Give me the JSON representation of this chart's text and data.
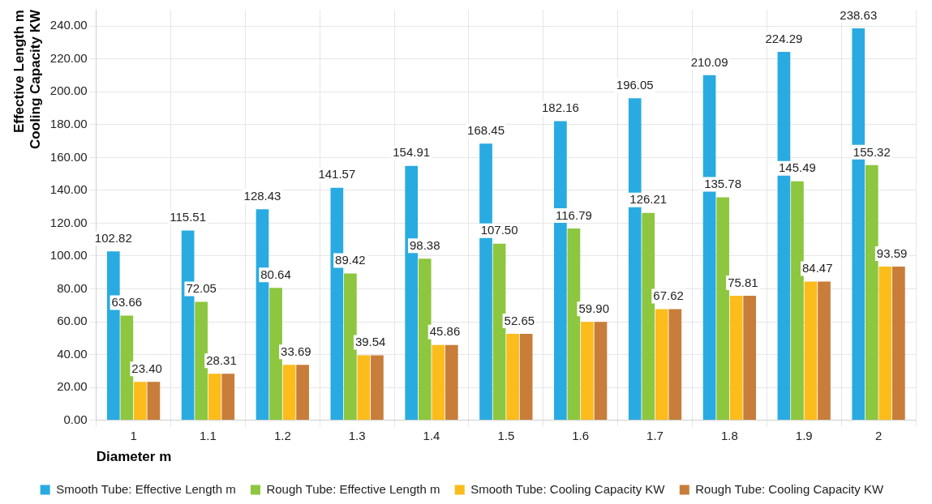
{
  "chart_data": {
    "type": "bar",
    "xlabel": "Diameter m",
    "ylabel": "Effective Length m\nCooling Capacity KW",
    "categories": [
      "1",
      "1.1",
      "1.2",
      "1.3",
      "1.4",
      "1.5",
      "1.6",
      "1.7",
      "1.8",
      "1.9",
      "2"
    ],
    "series": [
      {
        "name": "Smooth Tube: Effective Length m",
        "color": "#29abe2",
        "values": [
          102.82,
          115.51,
          128.43,
          141.57,
          154.91,
          168.45,
          182.16,
          196.05,
          210.09,
          224.29,
          238.63
        ],
        "value_labels": [
          "102.82",
          "115.51",
          "128.43",
          "141.57",
          "154.91",
          "168.45",
          "182.16",
          "196.05",
          "210.09",
          "224.29",
          "238.63"
        ]
      },
      {
        "name": "Rough Tube: Effective Length m",
        "color": "#8dc63f",
        "values": [
          63.66,
          72.05,
          80.64,
          89.42,
          98.38,
          107.5,
          116.79,
          126.21,
          135.78,
          145.49,
          155.32
        ],
        "value_labels": [
          "63.66",
          "72.05",
          "80.64",
          "89.42",
          "98.38",
          "107.50",
          "116.79",
          "126.21",
          "135.78",
          "145.49",
          "155.32"
        ]
      },
      {
        "name": "Smooth Tube: Cooling Capacity KW",
        "color": "#fbbc1c",
        "values": [
          23.4,
          28.31,
          33.69,
          39.54,
          45.86,
          52.65,
          59.9,
          67.62,
          75.81,
          84.47,
          93.59
        ],
        "value_labels": [
          "23.40",
          "28.31",
          "33.69",
          "39.54",
          "45.86",
          "52.65",
          "59.90",
          "67.62",
          "75.81",
          "84.47",
          "93.59"
        ]
      },
      {
        "name": "Rough Tube: Cooling Capacity KW",
        "color": "#c87d3a",
        "values": [
          23.4,
          28.31,
          33.69,
          39.54,
          45.86,
          52.65,
          59.9,
          67.62,
          75.81,
          84.47,
          93.59
        ],
        "value_labels": [
          null,
          null,
          null,
          null,
          null,
          null,
          null,
          null,
          null,
          null,
          null
        ]
      }
    ],
    "ylim": [
      0,
      250
    ],
    "yticks": [
      {
        "value": 0,
        "label": "0.00"
      },
      {
        "value": 20,
        "label": "20.00"
      },
      {
        "value": 40,
        "label": "40.00"
      },
      {
        "value": 60,
        "label": "60.00"
      },
      {
        "value": 80,
        "label": "80.00"
      },
      {
        "value": 100,
        "label": "100.00"
      },
      {
        "value": 120,
        "label": "120.00"
      },
      {
        "value": 140,
        "label": "140.00"
      },
      {
        "value": 160,
        "label": "160.00"
      },
      {
        "value": 180,
        "label": "180.00"
      },
      {
        "value": 200,
        "label": "200.00"
      },
      {
        "value": 220,
        "label": "220.00"
      },
      {
        "value": 240,
        "label": "240.00"
      }
    ],
    "grid": true,
    "legend": "bottom"
  }
}
